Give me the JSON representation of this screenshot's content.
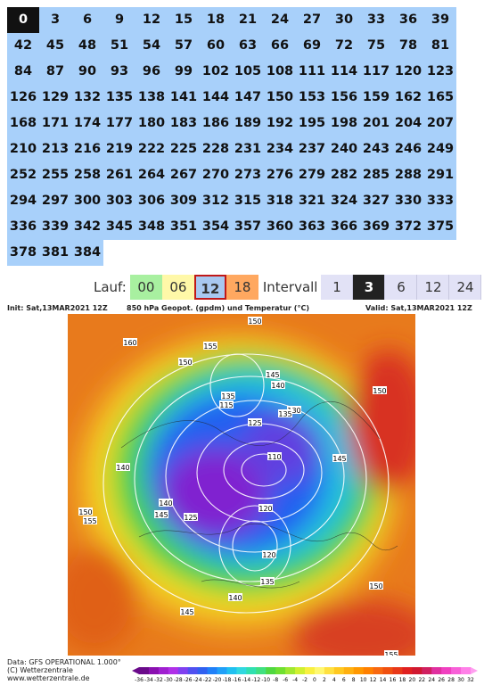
{
  "forecast_hours": {
    "items": [
      0,
      3,
      6,
      9,
      12,
      15,
      18,
      21,
      24,
      27,
      30,
      33,
      36,
      39,
      42,
      45,
      48,
      51,
      54,
      57,
      60,
      63,
      66,
      69,
      72,
      75,
      78,
      81,
      84,
      87,
      90,
      93,
      96,
      99,
      102,
      105,
      108,
      111,
      114,
      117,
      120,
      123,
      126,
      129,
      132,
      135,
      138,
      141,
      144,
      147,
      150,
      153,
      156,
      159,
      162,
      165,
      168,
      171,
      174,
      177,
      180,
      183,
      186,
      189,
      192,
      195,
      198,
      201,
      204,
      207,
      210,
      213,
      216,
      219,
      222,
      225,
      228,
      231,
      234,
      237,
      240,
      243,
      246,
      249,
      252,
      255,
      258,
      261,
      264,
      267,
      270,
      273,
      276,
      279,
      282,
      285,
      288,
      291,
      294,
      297,
      300,
      303,
      306,
      309,
      312,
      315,
      318,
      321,
      324,
      327,
      330,
      333,
      336,
      339,
      342,
      345,
      348,
      351,
      354,
      357,
      360,
      363,
      366,
      369,
      372,
      375,
      378,
      381,
      384
    ],
    "selected_index": 0
  },
  "controls": {
    "lauf_label": "Lauf:",
    "lauf_options": [
      "00",
      "06",
      "12",
      "18"
    ],
    "lauf_selected_index": 2,
    "interval_label": "Intervall",
    "interval_options": [
      "1",
      "3",
      "6",
      "12",
      "24"
    ],
    "interval_selected_index": 1
  },
  "map": {
    "init": "Init: Sat,13MAR2021 12Z",
    "title": "850 hPa Geopot. (gpdm) und Temperatur (°C)",
    "valid": "Valid: Sat,13MAR2021 12Z",
    "contour_labels": [
      "150",
      "160",
      "155",
      "150",
      "145",
      "140",
      "135",
      "125",
      "115",
      "130",
      "135",
      "110",
      "140",
      "145",
      "150",
      "150",
      "155",
      "145",
      "140",
      "120",
      "125",
      "135",
      "120",
      "140",
      "145",
      "150",
      "155"
    ]
  },
  "footer": {
    "data": "Data: GFS OPERATIONAL 1.000°",
    "copyright": "(C) Wetterzentrale",
    "url": "www.wetterzentrale.de"
  },
  "colorbar": {
    "labels": [
      -36,
      -34,
      -32,
      -30,
      -28,
      -26,
      -24,
      -22,
      -20,
      -18,
      -16,
      -14,
      -12,
      -10,
      -8,
      -6,
      -4,
      -2,
      0,
      2,
      4,
      6,
      8,
      10,
      12,
      14,
      16,
      18,
      20,
      22,
      24,
      26,
      28,
      30,
      32
    ]
  }
}
